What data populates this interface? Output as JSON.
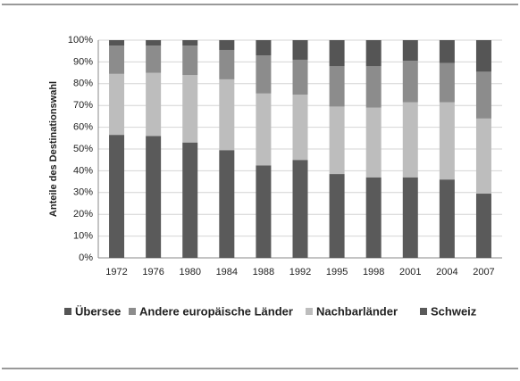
{
  "chart_data": {
    "type": "stacked_bar",
    "y_label": "Anteile des Destinationswahl",
    "categories": [
      "1972",
      "1976",
      "1980",
      "1984",
      "1988",
      "1992",
      "1995",
      "1998",
      "2001",
      "2004",
      "2007"
    ],
    "series": [
      {
        "name": "Übersee",
        "color": "#555555",
        "values": [
          2.5,
          2.5,
          2.5,
          4.5,
          7,
          9,
          12,
          12,
          9.5,
          10.5,
          14.5
        ]
      },
      {
        "name": "Andere europäische Länder",
        "color": "#8c8c8c",
        "values": [
          13,
          12.5,
          13.5,
          13.5,
          17.5,
          16,
          18.5,
          19,
          19,
          18,
          21.5
        ]
      },
      {
        "name": "Nachbarländer",
        "color": "#bdbdbd",
        "values": [
          28,
          29,
          31,
          32.5,
          33,
          30,
          31,
          32,
          34.5,
          35.5,
          34.5
        ]
      },
      {
        "name": "Schweiz",
        "color": "#5a5a5a",
        "values": [
          56.5,
          56,
          53,
          49.5,
          42.5,
          45,
          38.5,
          37,
          37,
          36,
          29.5
        ]
      }
    ],
    "ylim": [
      0,
      100
    ],
    "yticks": [
      {
        "value": 0,
        "label": "0%"
      },
      {
        "value": 10,
        "label": "10%"
      },
      {
        "value": 20,
        "label": "20%"
      },
      {
        "value": 30,
        "label": "30%"
      },
      {
        "value": 40,
        "label": "40%"
      },
      {
        "value": 50,
        "label": "50%"
      },
      {
        "value": 60,
        "label": "60%"
      },
      {
        "value": 70,
        "label": "70%"
      },
      {
        "value": 80,
        "label": "80%"
      },
      {
        "value": 90,
        "label": "90%"
      },
      {
        "value": 100,
        "label": "100%"
      }
    ],
    "grid": true
  }
}
